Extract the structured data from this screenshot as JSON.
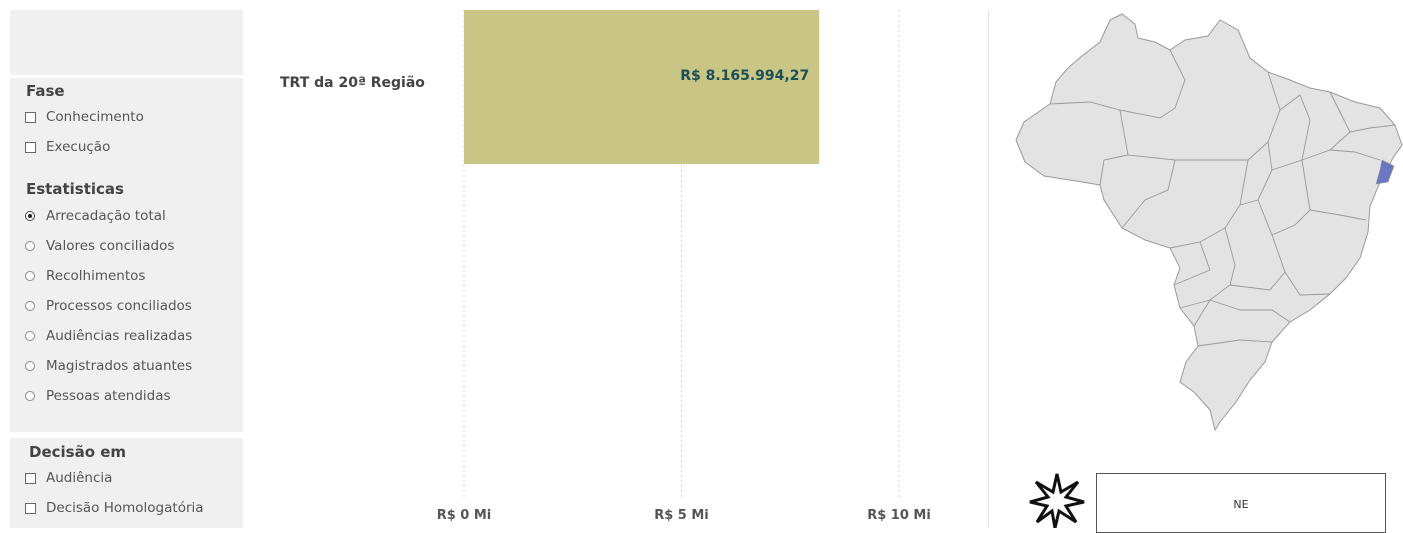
{
  "filters": {
    "fase": {
      "title": "Fase",
      "options": [
        "Conhecimento",
        "Execução"
      ]
    },
    "estatisticas": {
      "title": "Estatisticas",
      "selected": "Arrecadação total",
      "options": [
        "Arrecadação total",
        "Valores conciliados",
        "Recolhimentos",
        "Processos conciliados",
        "Audiências realizadas",
        "Magistrados atuantes",
        "Pessoas atendidas"
      ]
    },
    "decisao": {
      "title": "Decisão em",
      "options": [
        "Audiência",
        "Decisão Homologatória"
      ]
    }
  },
  "chart_data": {
    "type": "bar",
    "orientation": "horizontal",
    "categories": [
      "TRT da 20ª Região"
    ],
    "values": [
      8165994.27
    ],
    "value_labels": [
      "R$ 8.165.994,27"
    ],
    "xlim": [
      0,
      10000000
    ],
    "xticks": [
      0,
      5000000,
      10000000
    ],
    "xtick_labels": [
      "R$ 0 Mi",
      "R$ 5 Mi",
      "R$ 10 Mi"
    ],
    "bar_color": "#c8c585",
    "label_color": "#1d4f56",
    "grid": "vertical-dotted"
  },
  "map": {
    "base_color": "#e3e3e3",
    "border_color": "#999999",
    "highlight_color": "#6a77c2"
  },
  "region_box": {
    "label": "NE"
  }
}
